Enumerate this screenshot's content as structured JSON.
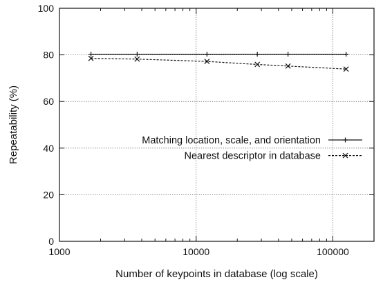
{
  "chart_data": {
    "type": "line",
    "xlabel": "Number of keypoints in database (log scale)",
    "ylabel": "Repeatability (%)",
    "x_scale": "log",
    "xlim": [
      1000,
      200000
    ],
    "ylim": [
      0,
      100
    ],
    "x_ticks": [
      1000,
      10000,
      100000
    ],
    "x_tick_labels": [
      "1000",
      "10000",
      "100000"
    ],
    "y_ticks": [
      0,
      20,
      40,
      60,
      80,
      100
    ],
    "y_tick_labels": [
      "0",
      "20",
      "40",
      "60",
      "80",
      "100"
    ],
    "grid": true,
    "legend_position": "right-center",
    "series": [
      {
        "name": "Matching location, scale, and orientation",
        "marker": "plus",
        "line": "solid",
        "color": "#111111",
        "x": [
          1700,
          3700,
          12000,
          28000,
          47000,
          125000
        ],
        "y": [
          80.3,
          80.3,
          80.3,
          80.3,
          80.3,
          80.3
        ]
      },
      {
        "name": "Nearest descriptor in database",
        "marker": "cross",
        "line": "dashed",
        "color": "#111111",
        "x": [
          1700,
          3700,
          12000,
          28000,
          47000,
          125000
        ],
        "y": [
          78.5,
          78.2,
          77.2,
          75.9,
          75.2,
          73.9
        ]
      }
    ]
  }
}
